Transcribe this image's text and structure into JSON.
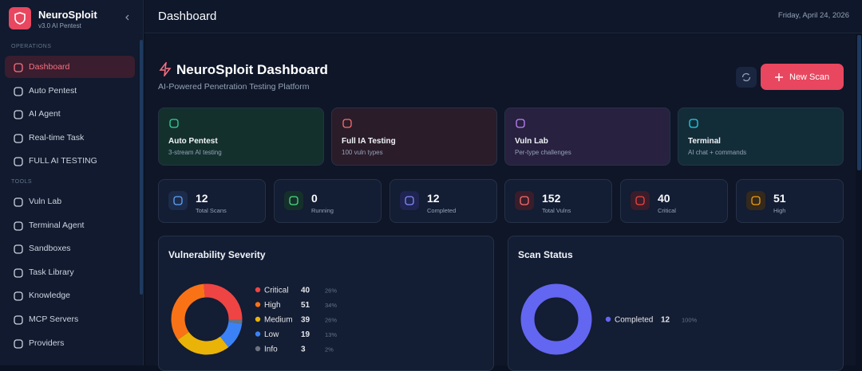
{
  "sidebar": {
    "brand": "NeuroSploit",
    "version": "v3.0 AI Pentest",
    "sections": [
      {
        "label": "OPERATIONS",
        "items": [
          "Dashboard",
          "Auto Pentest",
          "AI Agent",
          "Real-time Task",
          "FULL AI TESTING"
        ]
      },
      {
        "label": "TOOLS",
        "items": [
          "Vuln Lab",
          "Terminal Agent",
          "Sandboxes",
          "Task Library",
          "Knowledge",
          "MCP Servers",
          "Providers"
        ]
      }
    ]
  },
  "header": {
    "title": "Dashboard",
    "date": "Friday, April 24, 2026"
  },
  "hero": {
    "title": "NeuroSploit Dashboard",
    "subtitle": "AI-Powered Penetration Testing Platform",
    "button": "New Scan"
  },
  "quick_cards": [
    {
      "title": "Auto Pentest",
      "desc": "3-stream AI testing"
    },
    {
      "title": "Full IA Testing",
      "desc": "100 vuln types"
    },
    {
      "title": "Vuln Lab",
      "desc": "Per-type challenges"
    },
    {
      "title": "Terminal",
      "desc": "AI chat + commands"
    }
  ],
  "stats": [
    {
      "value": 12,
      "label": "Total Scans"
    },
    {
      "value": 0,
      "label": "Running"
    },
    {
      "value": 12,
      "label": "Completed"
    },
    {
      "value": 152,
      "label": "Total Vulns"
    },
    {
      "value": 40,
      "label": "Critical"
    },
    {
      "value": 51,
      "label": "High"
    }
  ],
  "severity": {
    "title": "Vulnerability Severity",
    "rows": [
      {
        "name": "Critical",
        "count": 40,
        "percent": "26%"
      },
      {
        "name": "High",
        "count": 51,
        "percent": "34%"
      },
      {
        "name": "Medium",
        "count": 39,
        "percent": "26%"
      },
      {
        "name": "Low",
        "count": 19,
        "percent": "13%"
      },
      {
        "name": "Info",
        "count": 3,
        "percent": "2%"
      }
    ]
  },
  "scan_status": {
    "title": "Scan Status",
    "rows": [
      {
        "name": "Completed",
        "count": 12,
        "percent": "100%"
      }
    ]
  }
}
